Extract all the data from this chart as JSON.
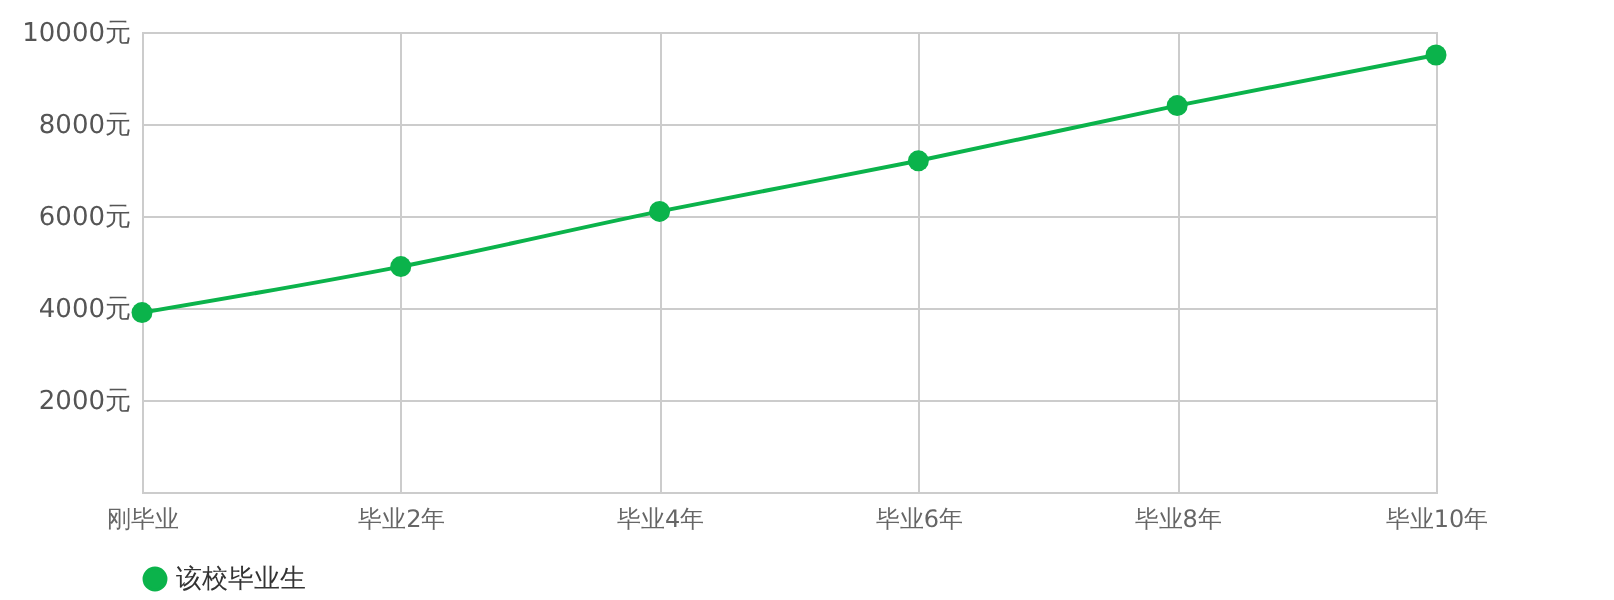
{
  "chart_data": {
    "type": "line",
    "categories": [
      "刚毕业",
      "毕业2年",
      "毕业4年",
      "毕业6年",
      "毕业8年",
      "毕业10年"
    ],
    "series": [
      {
        "name": "该校毕业生",
        "color": "#0bb34b",
        "values": [
          3900,
          4900,
          6100,
          7200,
          8400,
          9500
        ]
      }
    ],
    "ylim": [
      0,
      10000
    ],
    "yticks": [
      {
        "value": 2000,
        "label": "2000元"
      },
      {
        "value": 4000,
        "label": "4000元"
      },
      {
        "value": 6000,
        "label": "6000元"
      },
      {
        "value": 8000,
        "label": "8000元"
      },
      {
        "value": 10000,
        "label": "10000元"
      }
    ],
    "grid": true,
    "legend": "bottom",
    "marker": "circle",
    "line_style": "solid"
  }
}
